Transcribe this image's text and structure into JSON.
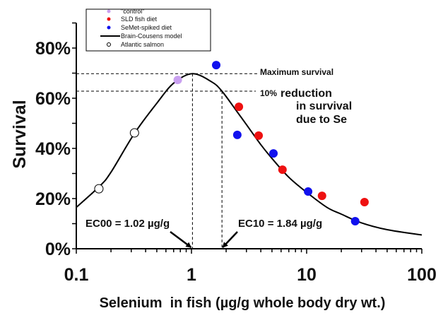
{
  "chart_data": {
    "type": "scatter",
    "xlabel": "Selenium  in fish (µg/g whole body dry wt.)",
    "ylabel": "Survival",
    "x_scale": "log",
    "xlim": [
      0.1,
      100
    ],
    "ylim": [
      0,
      90
    ],
    "x_ticks": [
      {
        "v": 0.1,
        "label": "0.1"
      },
      {
        "v": 1,
        "label": "1"
      },
      {
        "v": 10,
        "label": "10"
      },
      {
        "v": 100,
        "label": "100"
      }
    ],
    "y_ticks": [
      {
        "v": 0,
        "label": "0%"
      },
      {
        "v": 20,
        "label": "20%"
      },
      {
        "v": 40,
        "label": "40%"
      },
      {
        "v": 60,
        "label": "60%"
      },
      {
        "v": 80,
        "label": "80%"
      }
    ],
    "grid": false,
    "legend_position": "top-left",
    "series": [
      {
        "name": "\"control\"",
        "marker": "filled-circle",
        "color": "#c9a0f0",
        "points": [
          [
            0.76,
            67.3
          ]
        ]
      },
      {
        "name": "SLD fish diet",
        "marker": "filled-circle",
        "color": "#ee1111",
        "points": [
          [
            2.58,
            56.6
          ],
          [
            3.83,
            45.1
          ],
          [
            6.17,
            31.5
          ],
          [
            13.6,
            21.1
          ],
          [
            31.8,
            18.6
          ]
        ]
      },
      {
        "name": "SeMet-spiked diet",
        "marker": "filled-circle",
        "color": "#1111ee",
        "points": [
          [
            1.64,
            73.2
          ],
          [
            2.5,
            45.4
          ],
          [
            5.15,
            38.0
          ],
          [
            10.3,
            22.8
          ],
          [
            26.4,
            11.0
          ]
        ]
      },
      {
        "name": "Brain-Cousens model",
        "marker": "line",
        "color": "#000000",
        "points": [
          [
            0.1,
            16.5
          ],
          [
            0.16,
            25
          ],
          [
            0.2,
            30.5
          ],
          [
            0.32,
            46
          ],
          [
            0.5,
            58
          ],
          [
            0.7,
            66
          ],
          [
            1.02,
            69.8
          ],
          [
            1.5,
            66.5
          ],
          [
            1.84,
            62.8
          ],
          [
            2.5,
            54.5
          ],
          [
            3,
            49.5
          ],
          [
            4,
            41.5
          ],
          [
            5,
            36
          ],
          [
            7,
            28.5
          ],
          [
            10,
            22.5
          ],
          [
            15,
            16.5
          ],
          [
            20,
            13.8
          ],
          [
            30,
            10.3
          ],
          [
            50,
            7.6
          ],
          [
            100,
            5.5
          ]
        ]
      },
      {
        "name": "Atlantic salmon",
        "marker": "open-circle",
        "color": "#000000",
        "points": [
          [
            0.157,
            23.9
          ],
          [
            0.32,
            46.2
          ]
        ]
      }
    ],
    "reference_lines": {
      "max_survival": {
        "y": 69.8,
        "label": "Maximum survival"
      },
      "reduction_10": {
        "y": 62.8,
        "label_small": "10%",
        "label_lines": [
          "reduction",
          "in survival",
          "due to Se"
        ]
      },
      "ec00": {
        "x": 1.02,
        "label": "EC00 = 1.02 µg/g"
      },
      "ec10": {
        "x": 1.84,
        "label": "EC10 = 1.84 µg/g"
      }
    }
  }
}
